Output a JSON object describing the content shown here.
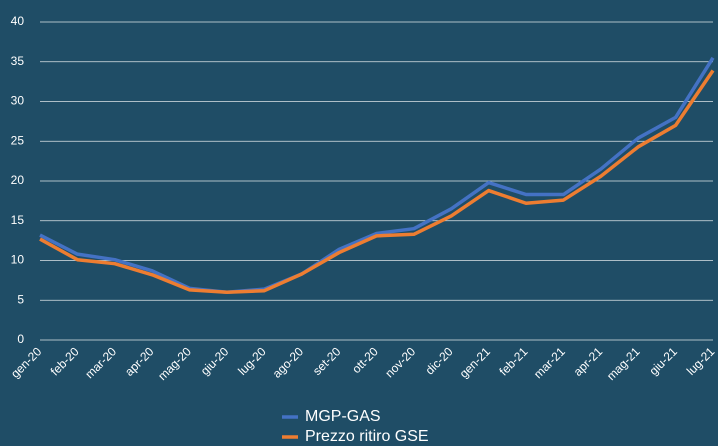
{
  "chart_data": {
    "type": "line",
    "categories": [
      "gen-20",
      "feb-20",
      "mar-20",
      "apr-20",
      "mag-20",
      "giu-20",
      "lug-20",
      "ago-20",
      "set-20",
      "ott-20",
      "nov-20",
      "dic-20",
      "gen-21",
      "feb-21",
      "mar-21",
      "apr-21",
      "mag-21",
      "giu-21",
      "lug-21"
    ],
    "series": [
      {
        "name": "MGP-GAS",
        "color": "#4472c4",
        "values": [
          13.2,
          10.8,
          10.1,
          8.7,
          6.5,
          6.0,
          6.4,
          8.3,
          11.4,
          13.4,
          14.0,
          16.5,
          19.8,
          18.3,
          18.3,
          21.5,
          25.4,
          28.0,
          35.5
        ]
      },
      {
        "name": "Prezzo ritiro GSE",
        "color": "#ed7d31",
        "values": [
          12.7,
          10.1,
          9.6,
          8.2,
          6.3,
          6.0,
          6.2,
          8.3,
          11.0,
          13.1,
          13.3,
          15.6,
          18.8,
          17.2,
          17.6,
          20.6,
          24.3,
          27.0,
          33.9
        ]
      }
    ],
    "ylim": [
      0,
      40
    ],
    "yticks": [
      0,
      5,
      10,
      15,
      20,
      25,
      30,
      35,
      40
    ],
    "grid": true
  }
}
